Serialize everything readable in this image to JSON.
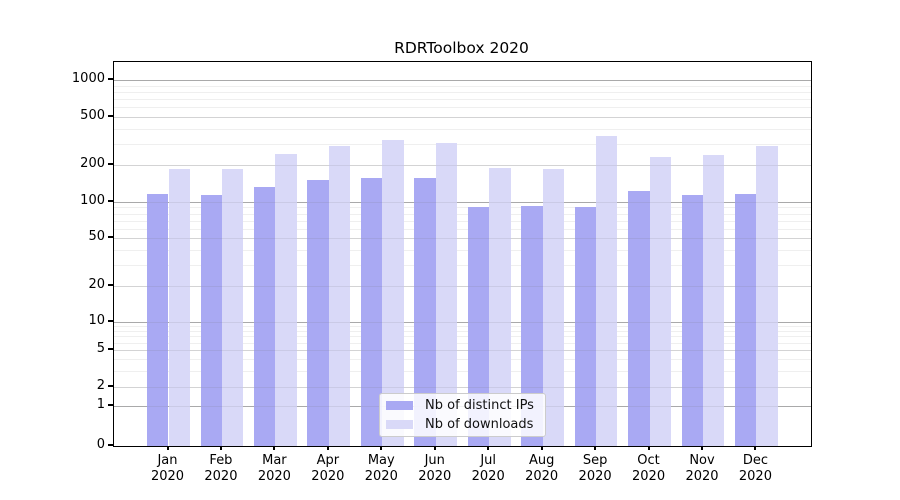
{
  "chart_data": {
    "type": "bar",
    "title": "RDRToolbox 2020",
    "categories": [
      "Jan",
      "Feb",
      "Mar",
      "Apr",
      "May",
      "Jun",
      "Jul",
      "Aug",
      "Sep",
      "Oct",
      "Nov",
      "Dec"
    ],
    "year_label": "2020",
    "series": [
      {
        "name": "Nb of distinct IPs",
        "color": "#a9a9f3",
        "values": [
          117,
          114,
          133,
          151,
          156,
          157,
          91,
          93,
          90,
          122,
          114,
          116
        ]
      },
      {
        "name": "Nb of downloads",
        "color": "#d9d9f8",
        "values": [
          186,
          186,
          248,
          285,
          322,
          305,
          189,
          187,
          348,
          232,
          240,
          289
        ]
      }
    ],
    "yscale": "symlog",
    "yticks": [
      0,
      1,
      2,
      5,
      10,
      20,
      50,
      100,
      200,
      500,
      1000
    ],
    "ylim": [
      0,
      1400
    ],
    "xlabel": "",
    "ylabel": "",
    "grid": true,
    "legend_position": "lower center"
  },
  "colors": {
    "grid_major": "#b3b3b3",
    "grid_mid": "#e3e3e3",
    "grid_minor": "#efefef",
    "spine": "#000000",
    "legend_border": "#cccccc",
    "background": "#ffffff"
  }
}
